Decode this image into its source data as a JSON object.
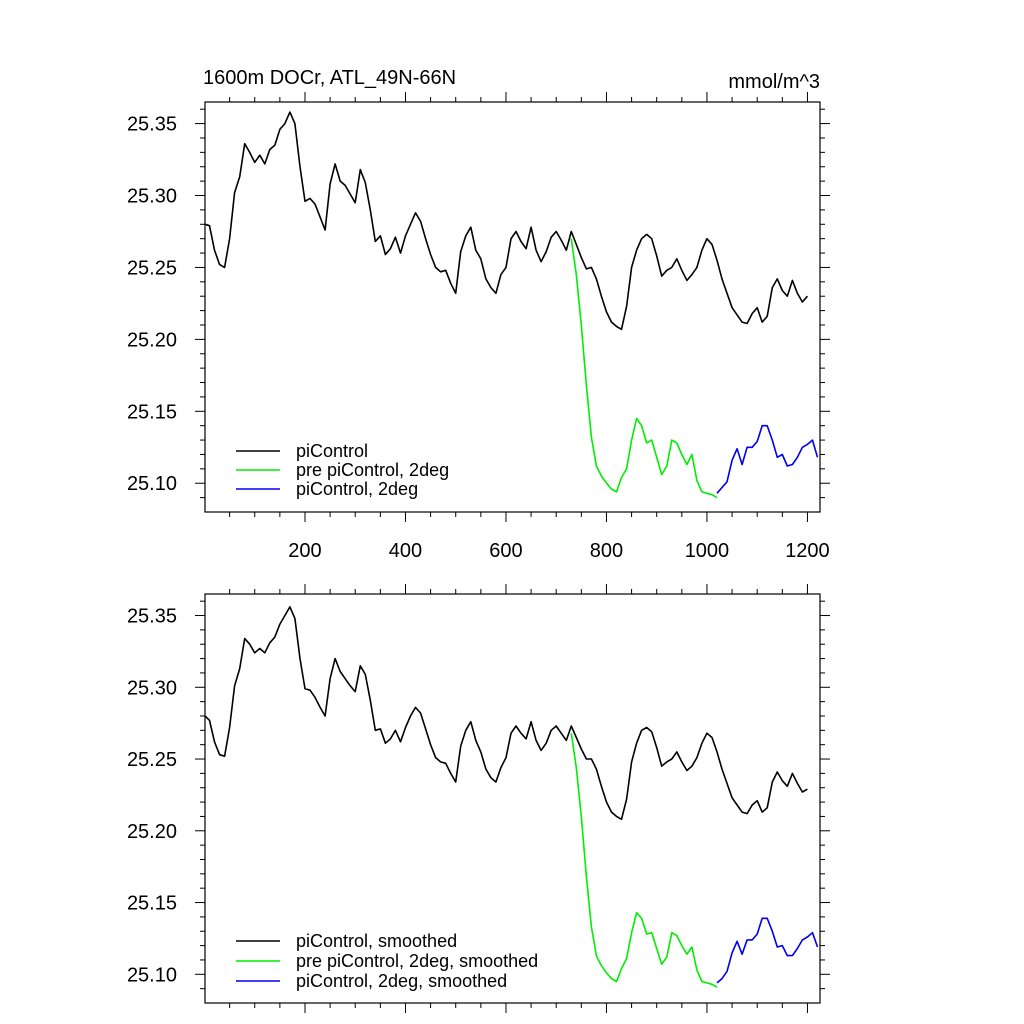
{
  "figure": {
    "title_left": "1600m DOCr, ATL_49N-66N",
    "title_right": "mmol/m^3"
  },
  "chart_data": [
    {
      "type": "line",
      "title": "1600m DOCr, ATL_49N-66N",
      "units": "mmol/m^3",
      "xlabel": "",
      "ylabel": "",
      "xlim": [
        1,
        1225
      ],
      "ylim": [
        25.08,
        25.365
      ],
      "x_ticks": [
        200,
        400,
        600,
        800,
        1000,
        1200
      ],
      "x_tick_labels": [
        "200",
        "400",
        "600",
        "800",
        "1000",
        "1200"
      ],
      "y_ticks": [
        25.1,
        25.15,
        25.2,
        25.25,
        25.3,
        25.35
      ],
      "y_tick_labels": [
        "25.10",
        "25.15",
        "25.20",
        "25.25",
        "25.30",
        "25.35"
      ],
      "grid": false,
      "legend_position": "bottom-left",
      "series": [
        {
          "name": "piControl",
          "color": "#000000",
          "x": [
            1,
            10,
            20,
            30,
            40,
            50,
            60,
            70,
            80,
            90,
            100,
            110,
            120,
            130,
            140,
            150,
            160,
            170,
            180,
            190,
            200,
            210,
            220,
            230,
            240,
            250,
            260,
            270,
            280,
            290,
            300,
            310,
            320,
            330,
            340,
            350,
            360,
            370,
            380,
            390,
            400,
            410,
            420,
            430,
            440,
            450,
            460,
            470,
            480,
            490,
            500,
            510,
            520,
            530,
            540,
            550,
            560,
            570,
            580,
            590,
            600,
            610,
            620,
            630,
            640,
            650,
            660,
            670,
            680,
            690,
            700,
            710,
            720,
            730,
            740,
            750,
            760,
            770,
            780,
            790,
            800,
            810,
            820,
            830,
            840,
            850,
            860,
            870,
            880,
            890,
            900,
            910,
            920,
            930,
            940,
            950,
            960,
            970,
            980,
            990,
            1000,
            1010,
            1020,
            1030,
            1040,
            1050,
            1060,
            1070,
            1080,
            1090,
            1100,
            1110,
            1120,
            1130,
            1140,
            1150,
            1160,
            1170,
            1180,
            1190,
            1200
          ],
          "values": [
            25.28,
            25.279,
            25.262,
            25.252,
            25.25,
            25.27,
            25.302,
            25.313,
            25.336,
            25.33,
            25.323,
            25.328,
            25.322,
            25.332,
            25.335,
            25.346,
            25.35,
            25.358,
            25.35,
            25.32,
            25.296,
            25.298,
            25.294,
            25.285,
            25.276,
            25.308,
            25.322,
            25.31,
            25.307,
            25.301,
            25.295,
            25.318,
            25.309,
            25.29,
            25.268,
            25.272,
            25.259,
            25.263,
            25.271,
            25.26,
            25.272,
            25.28,
            25.288,
            25.282,
            25.27,
            25.259,
            25.25,
            25.247,
            25.248,
            25.239,
            25.232,
            25.261,
            25.272,
            25.278,
            25.262,
            25.256,
            25.242,
            25.236,
            25.232,
            25.245,
            25.25,
            25.27,
            25.275,
            25.268,
            25.263,
            25.278,
            25.262,
            25.254,
            25.261,
            25.271,
            25.275,
            25.269,
            25.262,
            25.275,
            25.266,
            25.257,
            25.249,
            25.25,
            25.242,
            25.23,
            25.219,
            25.212,
            25.209,
            25.207,
            25.223,
            25.25,
            25.262,
            25.27,
            25.273,
            25.27,
            25.258,
            25.244,
            25.248,
            25.25,
            25.256,
            25.248,
            25.241,
            25.245,
            25.25,
            25.262,
            25.27,
            25.266,
            25.255,
            25.242,
            25.232,
            25.222,
            25.217,
            25.212,
            25.211,
            25.218,
            25.222,
            25.212,
            25.216,
            25.236,
            25.242,
            25.234,
            25.23,
            25.241,
            25.232,
            25.226,
            25.23
          ]
        },
        {
          "name": "pre piControl, 2deg",
          "color": "#00ee00",
          "x": [
            730,
            740,
            750,
            760,
            770,
            780,
            790,
            800,
            810,
            820,
            830,
            840,
            850,
            860,
            870,
            880,
            890,
            900,
            910,
            920,
            930,
            940,
            950,
            960,
            970,
            980,
            990,
            1000,
            1010,
            1020
          ],
          "values": [
            25.27,
            25.245,
            25.21,
            25.168,
            25.132,
            25.112,
            25.105,
            25.1,
            25.096,
            25.094,
            25.104,
            25.11,
            25.13,
            25.145,
            25.14,
            25.128,
            25.13,
            25.118,
            25.106,
            25.112,
            25.13,
            25.128,
            25.12,
            25.113,
            25.12,
            25.102,
            25.094,
            25.093,
            25.092,
            25.09
          ]
        },
        {
          "name": "piControl, 2deg",
          "color": "#0000ee",
          "x": [
            1020,
            1030,
            1040,
            1050,
            1060,
            1070,
            1080,
            1090,
            1100,
            1110,
            1120,
            1130,
            1140,
            1150,
            1160,
            1170,
            1180,
            1190,
            1200,
            1210,
            1220
          ],
          "values": [
            25.093,
            25.097,
            25.101,
            25.116,
            25.124,
            25.113,
            25.125,
            25.125,
            25.129,
            25.14,
            25.14,
            25.13,
            25.118,
            25.12,
            25.112,
            25.113,
            25.118,
            25.125,
            25.127,
            25.13,
            25.118
          ]
        }
      ]
    },
    {
      "type": "line",
      "title": "",
      "xlabel": "",
      "ylabel": "",
      "xlim": [
        1,
        1225
      ],
      "ylim": [
        25.08,
        25.365
      ],
      "y_ticks": [
        25.1,
        25.15,
        25.2,
        25.25,
        25.3,
        25.35
      ],
      "y_tick_labels": [
        "25.10",
        "25.15",
        "25.20",
        "25.25",
        "25.30",
        "25.35"
      ],
      "grid": false,
      "legend_position": "bottom-left",
      "series": [
        {
          "name": "piControl, smoothed",
          "color": "#000000",
          "x": [
            1,
            10,
            20,
            30,
            40,
            50,
            60,
            70,
            80,
            90,
            100,
            110,
            120,
            130,
            140,
            150,
            160,
            170,
            180,
            190,
            200,
            210,
            220,
            230,
            240,
            250,
            260,
            270,
            280,
            290,
            300,
            310,
            320,
            330,
            340,
            350,
            360,
            370,
            380,
            390,
            400,
            410,
            420,
            430,
            440,
            450,
            460,
            470,
            480,
            490,
            500,
            510,
            520,
            530,
            540,
            550,
            560,
            570,
            580,
            590,
            600,
            610,
            620,
            630,
            640,
            650,
            660,
            670,
            680,
            690,
            700,
            710,
            720,
            730,
            740,
            750,
            760,
            770,
            780,
            790,
            800,
            810,
            820,
            830,
            840,
            850,
            860,
            870,
            880,
            890,
            900,
            910,
            920,
            930,
            940,
            950,
            960,
            970,
            980,
            990,
            1000,
            1010,
            1020,
            1030,
            1040,
            1050,
            1060,
            1070,
            1080,
            1090,
            1100,
            1110,
            1120,
            1130,
            1140,
            1150,
            1160,
            1170,
            1180,
            1190,
            1200
          ],
          "values": [
            25.28,
            25.277,
            25.262,
            25.253,
            25.252,
            25.272,
            25.301,
            25.313,
            25.334,
            25.33,
            25.324,
            25.327,
            25.324,
            25.331,
            25.335,
            25.344,
            25.35,
            25.356,
            25.348,
            25.32,
            25.299,
            25.298,
            25.293,
            25.286,
            25.28,
            25.306,
            25.32,
            25.311,
            25.306,
            25.301,
            25.297,
            25.315,
            25.309,
            25.291,
            25.27,
            25.271,
            25.261,
            25.264,
            25.27,
            25.262,
            25.272,
            25.28,
            25.286,
            25.282,
            25.271,
            25.26,
            25.251,
            25.248,
            25.247,
            25.24,
            25.234,
            25.259,
            25.27,
            25.276,
            25.263,
            25.255,
            25.243,
            25.237,
            25.234,
            25.244,
            25.251,
            25.268,
            25.273,
            25.268,
            25.264,
            25.276,
            25.263,
            25.256,
            25.261,
            25.27,
            25.273,
            25.268,
            25.263,
            25.273,
            25.265,
            25.257,
            25.25,
            25.25,
            25.243,
            25.231,
            25.22,
            25.213,
            25.21,
            25.208,
            25.222,
            25.248,
            25.261,
            25.27,
            25.272,
            25.269,
            25.258,
            25.245,
            25.248,
            25.25,
            25.255,
            25.248,
            25.242,
            25.245,
            25.251,
            25.261,
            25.268,
            25.265,
            25.255,
            25.243,
            25.233,
            25.223,
            25.218,
            25.213,
            25.212,
            25.218,
            25.221,
            25.213,
            25.216,
            25.234,
            25.241,
            25.235,
            25.231,
            25.24,
            25.233,
            25.227,
            25.229
          ]
        },
        {
          "name": "pre piControl, 2deg, smoothed",
          "color": "#00ee00",
          "x": [
            730,
            740,
            750,
            760,
            770,
            780,
            790,
            800,
            810,
            820,
            830,
            840,
            850,
            860,
            870,
            880,
            890,
            900,
            910,
            920,
            930,
            940,
            950,
            960,
            970,
            980,
            990,
            1000,
            1010,
            1020
          ],
          "values": [
            25.268,
            25.244,
            25.21,
            25.168,
            25.133,
            25.113,
            25.106,
            25.101,
            25.097,
            25.095,
            25.104,
            25.111,
            25.129,
            25.143,
            25.139,
            25.128,
            25.129,
            25.118,
            25.107,
            25.112,
            25.129,
            25.127,
            25.12,
            25.114,
            25.119,
            25.103,
            25.095,
            25.094,
            25.093,
            25.091
          ]
        },
        {
          "name": "piControl, 2deg, smoothed",
          "color": "#0000ee",
          "x": [
            1020,
            1030,
            1040,
            1050,
            1060,
            1070,
            1080,
            1090,
            1100,
            1110,
            1120,
            1130,
            1140,
            1150,
            1160,
            1170,
            1180,
            1190,
            1200,
            1210,
            1220
          ],
          "values": [
            25.094,
            25.097,
            25.102,
            25.115,
            25.123,
            25.114,
            25.124,
            25.124,
            25.128,
            25.139,
            25.139,
            25.13,
            25.119,
            25.12,
            25.113,
            25.113,
            25.118,
            25.124,
            25.126,
            25.129,
            25.119
          ]
        }
      ]
    }
  ]
}
